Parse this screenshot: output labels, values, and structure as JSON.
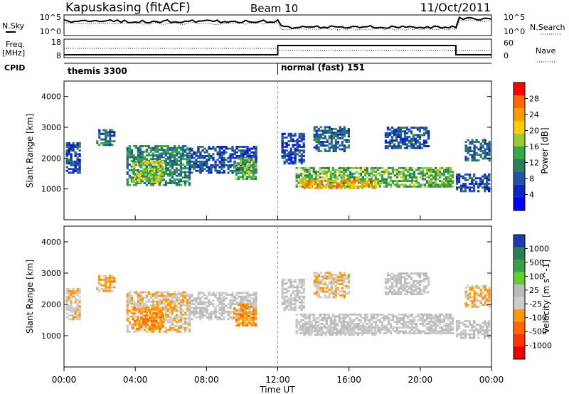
{
  "header": {
    "station": "Kapuskasing (fitACF)",
    "beam": "Beam 10",
    "date": "11/Oct/2011"
  },
  "summary": {
    "nsky_label": "N.Sky",
    "nsearch_label": "N.Search",
    "freq_label_1": "Freq.",
    "freq_label_2": "[MHz]",
    "nave_label": "Nave",
    "cpid_label": "CPID",
    "noise_ticks": [
      "10^5",
      "10^0"
    ],
    "noise_ticks_right": [
      "10^5",
      "10^0"
    ],
    "freq_ticks": [
      "18",
      "8"
    ],
    "nave_ticks": [
      "60",
      "0"
    ],
    "cpid_left": "themis 3300",
    "cpid_right": "normal (fast) 151",
    "cpid_switch_hour": 12
  },
  "power_panel": {
    "ylabel": "Slant Range [km]",
    "colorbar_label": "Power [dB]",
    "colorbar_ticks": [
      "28",
      "24",
      "20",
      "16",
      "12",
      "8",
      "4"
    ],
    "colorbar_colors": [
      "#ff0000",
      "#ff6600",
      "#ff9900",
      "#ffcc00",
      "#99cc33",
      "#33aa44",
      "#2e7d5a",
      "#2255aa",
      "#1122cc",
      "#0000ff"
    ]
  },
  "velocity_panel": {
    "ylabel": "Slant Range [km]",
    "colorbar_label": "Velocity [m s^-1]",
    "colorbar_ticks": [
      "1000",
      "500",
      "100",
      "25",
      "-25",
      "-100",
      "-500",
      "-1000"
    ],
    "colorbar_colors": [
      "#1a3cb0",
      "#2e7d5a",
      "#3aa04a",
      "#66cc33",
      "#bbbbbb",
      "#cccccc",
      "#ff9900",
      "#ff6600",
      "#ff3300",
      "#ee0000"
    ]
  },
  "xaxis": {
    "label": "Time UT",
    "ticks": [
      "00:00",
      "04:00",
      "08:00",
      "12:00",
      "16:00",
      "20:00",
      "00:00"
    ]
  },
  "chart_data": {
    "type": "heatmap",
    "title": "Kapuskasing (fitACF) Beam 10 11/Oct/2011",
    "xlabel": "Time UT",
    "ylabel": "Slant Range [km]",
    "xlim": [
      0,
      24
    ],
    "ylim": [
      0,
      4500
    ],
    "yticks": [
      1000,
      2000,
      3000,
      4000
    ],
    "grid": false,
    "power_zlim": [
      0,
      30
    ],
    "velocity_zlim": [
      -1000,
      1000
    ],
    "echo_regions": [
      {
        "t0": 0.1,
        "t1": 0.9,
        "r0": 1500,
        "r1": 2500,
        "power": 6,
        "velocity": -150
      },
      {
        "t0": 1.8,
        "t1": 2.8,
        "r0": 2400,
        "r1": 2900,
        "power": 8,
        "velocity": -300
      },
      {
        "t0": 3.5,
        "t1": 7.0,
        "r0": 1100,
        "r1": 2400,
        "power": 10,
        "velocity": -200
      },
      {
        "t0": 3.8,
        "t1": 5.5,
        "r0": 1200,
        "r1": 1900,
        "power": 16,
        "velocity": -400
      },
      {
        "t0": 7.0,
        "t1": 10.8,
        "r0": 1500,
        "r1": 2400,
        "power": 6,
        "velocity": 0
      },
      {
        "t0": 9.5,
        "t1": 10.8,
        "r0": 1300,
        "r1": 2000,
        "power": 14,
        "velocity": -350
      },
      {
        "t0": 12.2,
        "t1": 13.5,
        "r0": 1800,
        "r1": 2800,
        "power": 6,
        "velocity": 0
      },
      {
        "t0": 13.0,
        "t1": 21.8,
        "r0": 1050,
        "r1": 1700,
        "power": 14,
        "velocity": 0
      },
      {
        "t0": 13.2,
        "t1": 17.5,
        "r0": 1000,
        "r1": 1300,
        "power": 22,
        "velocity": 0
      },
      {
        "t0": 14.0,
        "t1": 16.0,
        "r0": 2200,
        "r1": 3000,
        "power": 8,
        "velocity": -200
      },
      {
        "t0": 18.0,
        "t1": 20.5,
        "r0": 2300,
        "r1": 3000,
        "power": 6,
        "velocity": 0
      },
      {
        "t0": 22.0,
        "t1": 23.9,
        "r0": 900,
        "r1": 1500,
        "power": 6,
        "velocity": 0
      },
      {
        "t0": 22.5,
        "t1": 23.9,
        "r0": 1900,
        "r1": 2600,
        "power": 8,
        "velocity": -250
      }
    ]
  }
}
